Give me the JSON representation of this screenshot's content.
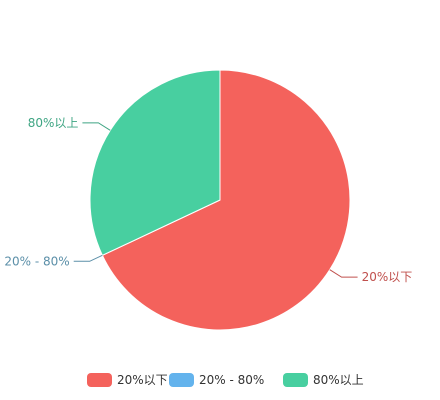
{
  "chart_data": {
    "type": "pie",
    "categories": [
      "20%以下",
      "20% - 80%",
      "80%以上"
    ],
    "values": [
      68,
      0,
      32
    ],
    "colors": [
      "#F4625C",
      "#63B3ED",
      "#48CFA0"
    ],
    "label_colors": [
      "#C0504D",
      "#5B8FA8",
      "#3FA583"
    ],
    "legend": {
      "placement": "bottom-center"
    },
    "start_angle_deg": 90,
    "direction": "clockwise"
  }
}
